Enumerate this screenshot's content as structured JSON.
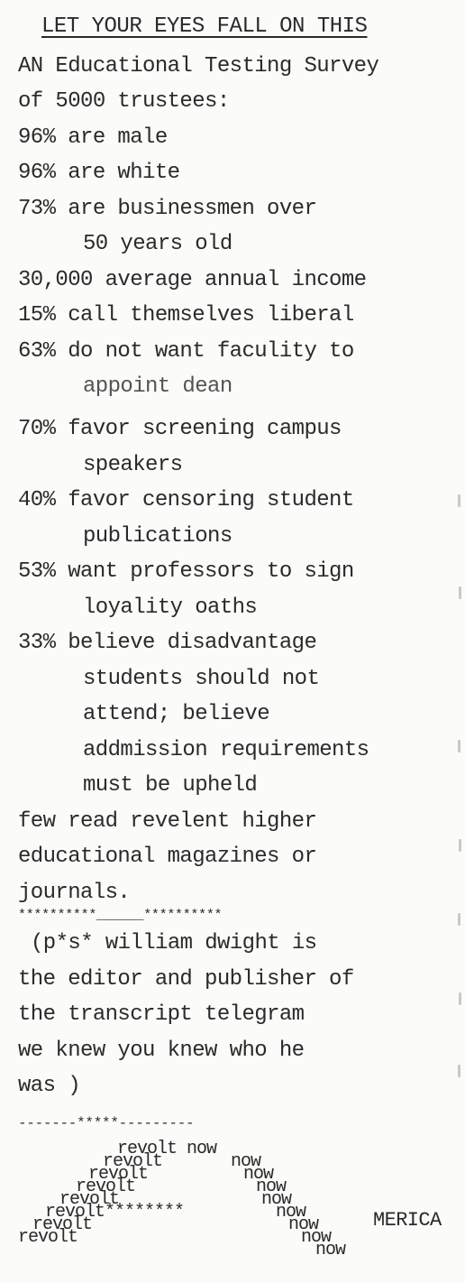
{
  "title": "LET YOUR EYES FALL ON THIS",
  "lines": [
    "AN Educational Testing Survey",
    "of 5000 trustees:",
    "96% are male",
    "96% are white",
    "73% are businessmen over",
    "50 years old",
    "30,000 average annual income",
    "15% call themselves liberal",
    "63% do not want faculity to",
    "appoint dean",
    "70% favor screening campus",
    "speakers",
    "40% favor censoring student",
    "publications",
    "53% want professors to sign",
    "loyality oaths",
    "33% believe disadvantage",
    "students should not",
    "attend; believe",
    "addmission requirements",
    "must be upheld",
    "few read revelent higher",
    "educational magazines or",
    "journals."
  ],
  "divider1": "**********______**********",
  "ps_lines": [
    "(p*s* william dwight is",
    "the editor and publisher of",
    "the transcript telegram",
    "we knew you knew who he",
    "was )"
  ],
  "divider2": "-------*****---------",
  "revolt_word": "revolt",
  "now_word": "now",
  "revolt_now": "revolt now",
  "revolt_stars": "revolt********",
  "merica": "MERICA"
}
